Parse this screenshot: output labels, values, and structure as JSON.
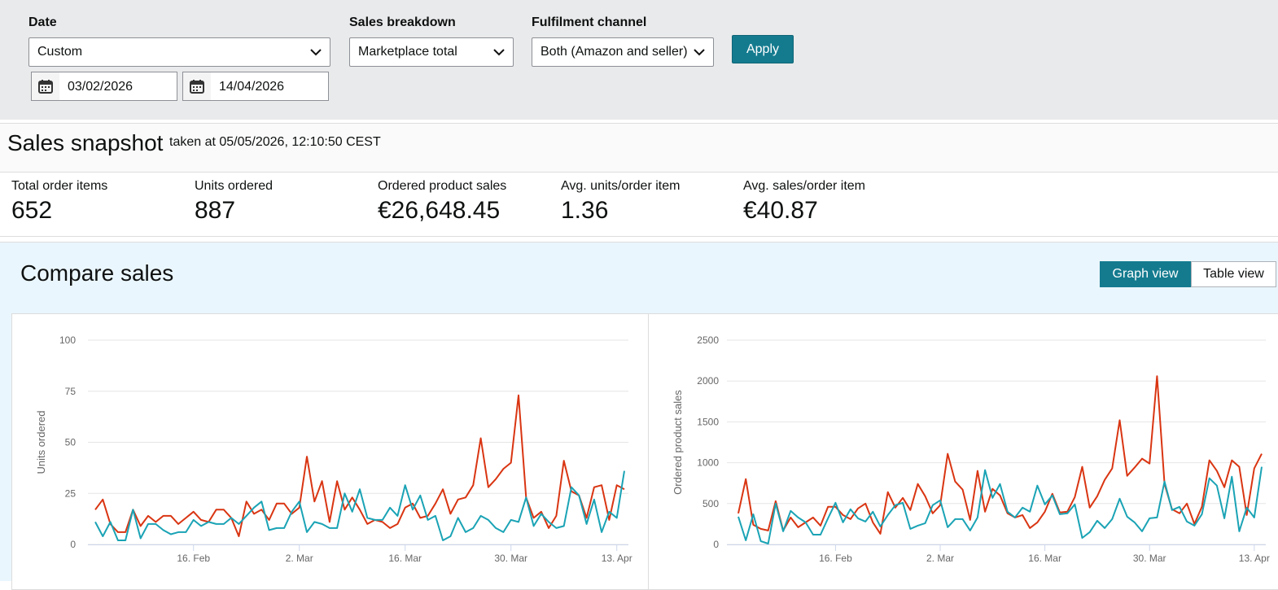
{
  "filters": {
    "date": {
      "label": "Date",
      "value": "Custom",
      "start": "03/02/2026",
      "end": "14/04/2026"
    },
    "sales_breakdown": {
      "label": "Sales breakdown",
      "value": "Marketplace total"
    },
    "fulfilment_channel": {
      "label": "Fulfilment channel",
      "value": "Both (Amazon and seller)"
    },
    "apply": "Apply"
  },
  "snapshot": {
    "title": "Sales snapshot",
    "taken_at": "taken at 05/05/2026, 12:10:50 CEST",
    "metrics": [
      {
        "label": "Total order items",
        "value": "652"
      },
      {
        "label": "Units ordered",
        "value": "887"
      },
      {
        "label": "Ordered product sales",
        "value": "€26,648.45"
      },
      {
        "label": "Avg. units/order item",
        "value": "1.36"
      },
      {
        "label": "Avg. sales/order item",
        "value": "€40.87"
      }
    ]
  },
  "compare": {
    "title": "Compare sales",
    "views": [
      "Graph view",
      "Table view"
    ]
  },
  "chart_data": [
    {
      "type": "line",
      "y_label": "Units ordered",
      "categories": [
        null,
        null,
        null,
        null,
        null,
        null,
        null,
        null,
        null,
        null,
        null,
        null,
        null,
        "16. Feb",
        null,
        null,
        null,
        null,
        null,
        null,
        null,
        null,
        null,
        null,
        null,
        null,
        null,
        "2. Mar",
        null,
        null,
        null,
        null,
        null,
        null,
        null,
        null,
        null,
        null,
        null,
        null,
        null,
        "16. Mar",
        null,
        null,
        null,
        null,
        null,
        null,
        null,
        null,
        null,
        null,
        null,
        null,
        null,
        "30. Mar",
        null,
        null,
        null,
        null,
        null,
        null,
        null,
        null,
        null,
        null,
        null,
        null,
        null,
        "13. Apr",
        null
      ],
      "series": [
        {
          "color": "#d93512",
          "values": [
            17,
            22,
            10,
            6,
            6,
            17,
            9,
            14,
            11,
            14,
            14,
            10,
            13,
            16,
            12,
            11,
            17,
            17,
            13,
            4,
            21,
            15,
            17,
            12,
            20,
            20,
            15,
            18,
            43,
            21,
            31,
            11,
            31,
            17,
            23,
            17,
            10,
            12,
            11,
            8,
            10,
            18,
            20,
            13,
            14,
            20,
            27,
            15,
            22,
            23,
            29,
            52,
            28,
            32,
            37,
            40,
            73,
            23,
            13,
            16,
            8,
            14,
            41,
            26,
            24,
            13,
            28,
            29,
            12,
            29,
            27
          ]
        },
        {
          "color": "#1aa3b5",
          "values": [
            11,
            4,
            11,
            2,
            2,
            17,
            3,
            10,
            10,
            7,
            5,
            6,
            6,
            12,
            9,
            11,
            10,
            10,
            13,
            10,
            14,
            18,
            21,
            7,
            8,
            8,
            16,
            21,
            6,
            11,
            10,
            8,
            8,
            25,
            16,
            27,
            13,
            12,
            12,
            18,
            14,
            29,
            17,
            24,
            12,
            14,
            2,
            4,
            13,
            6,
            8,
            14,
            12,
            8,
            6,
            12,
            11,
            23,
            9,
            15,
            11,
            8,
            9,
            28,
            24,
            10,
            22,
            6,
            16,
            13,
            36
          ]
        }
      ],
      "ylim": [
        0,
        100
      ],
      "yticks": [
        0,
        25,
        50,
        75,
        100
      ],
      "grid": true
    },
    {
      "type": "line",
      "y_label": "Ordered product sales",
      "categories": [
        null,
        null,
        null,
        null,
        null,
        null,
        null,
        null,
        null,
        null,
        null,
        null,
        null,
        "16. Feb",
        null,
        null,
        null,
        null,
        null,
        null,
        null,
        null,
        null,
        null,
        null,
        null,
        null,
        "2. Mar",
        null,
        null,
        null,
        null,
        null,
        null,
        null,
        null,
        null,
        null,
        null,
        null,
        null,
        "16. Mar",
        null,
        null,
        null,
        null,
        null,
        null,
        null,
        null,
        null,
        null,
        null,
        null,
        null,
        "30. Mar",
        null,
        null,
        null,
        null,
        null,
        null,
        null,
        null,
        null,
        null,
        null,
        null,
        null,
        "13. Apr",
        null
      ],
      "series": [
        {
          "color": "#d93512",
          "values": [
            380,
            800,
            240,
            190,
            170,
            530,
            170,
            330,
            210,
            270,
            330,
            230,
            460,
            460,
            360,
            310,
            440,
            500,
            270,
            130,
            640,
            450,
            570,
            420,
            740,
            590,
            380,
            480,
            1110,
            770,
            670,
            300,
            900,
            400,
            680,
            600,
            380,
            330,
            360,
            200,
            270,
            400,
            620,
            390,
            400,
            580,
            950,
            450,
            590,
            790,
            930,
            1520,
            840,
            940,
            1050,
            990,
            2060,
            740,
            430,
            380,
            500,
            250,
            460,
            1030,
            900,
            700,
            1030,
            950,
            360,
            930,
            1110
          ]
        },
        {
          "color": "#1aa3b5",
          "values": [
            340,
            50,
            370,
            40,
            10,
            500,
            160,
            410,
            330,
            270,
            120,
            120,
            320,
            510,
            270,
            430,
            320,
            280,
            400,
            220,
            360,
            480,
            510,
            190,
            230,
            260,
            480,
            540,
            210,
            310,
            310,
            170,
            330,
            910,
            570,
            740,
            400,
            330,
            450,
            400,
            720,
            490,
            600,
            370,
            380,
            490,
            80,
            150,
            290,
            200,
            310,
            560,
            340,
            270,
            160,
            320,
            330,
            770,
            420,
            460,
            280,
            230,
            370,
            810,
            720,
            320,
            830,
            160,
            450,
            330,
            950
          ]
        }
      ],
      "ylim": [
        0,
        2500
      ],
      "yticks": [
        0,
        500,
        1000,
        1500,
        2000,
        2500
      ],
      "grid": true
    }
  ]
}
